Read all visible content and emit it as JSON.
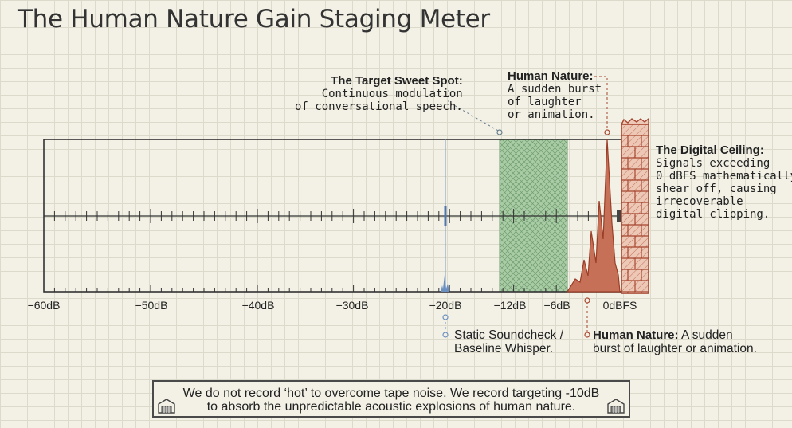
{
  "title": "The Human Nature Gain Staging Meter",
  "axis": {
    "ticks": [
      "−60dB",
      "−50dB",
      "−40dB",
      "−30dB",
      "−20dB",
      "−12dB",
      "−6dB",
      "0dBFS"
    ]
  },
  "annotations": {
    "sweet_spot": {
      "heading": "The Target Sweet Spot:",
      "line1": "Continuous modulation",
      "line2": "of conversational speech."
    },
    "human_nature_top": {
      "heading": "Human Nature:",
      "line1": "A sudden burst",
      "line2": "of laughter",
      "line3": "or animation."
    },
    "digital_ceiling": {
      "heading": "The Digital Ceiling:",
      "line1": "Signals exceeding",
      "line2": "0 dBFS mathematically",
      "line3": "shear off, causing",
      "line4": "irrecoverable",
      "line5": "digital clipping."
    },
    "soundcheck": {
      "line1": "Static Soundcheck /",
      "line2": "Baseline Whisper."
    },
    "human_nature_bottom": {
      "heading": "Human Nature:",
      "line1": "A sudden",
      "line2": "burst of laughter or animation."
    }
  },
  "footer": {
    "line1": "We do not record ‘hot’ to overcome tape noise. We record targeting -10dB",
    "line2": "to absorb the unpredictable acoustic explosions of human nature."
  },
  "colors": {
    "sweet_spot_fill": "#9cc49a",
    "clip_red": "#b8543c",
    "ceiling_fill": "#e8b8a4",
    "whisper_blue": "#6b8fc0"
  },
  "icons": [
    "studio-icon",
    "studio-icon"
  ]
}
